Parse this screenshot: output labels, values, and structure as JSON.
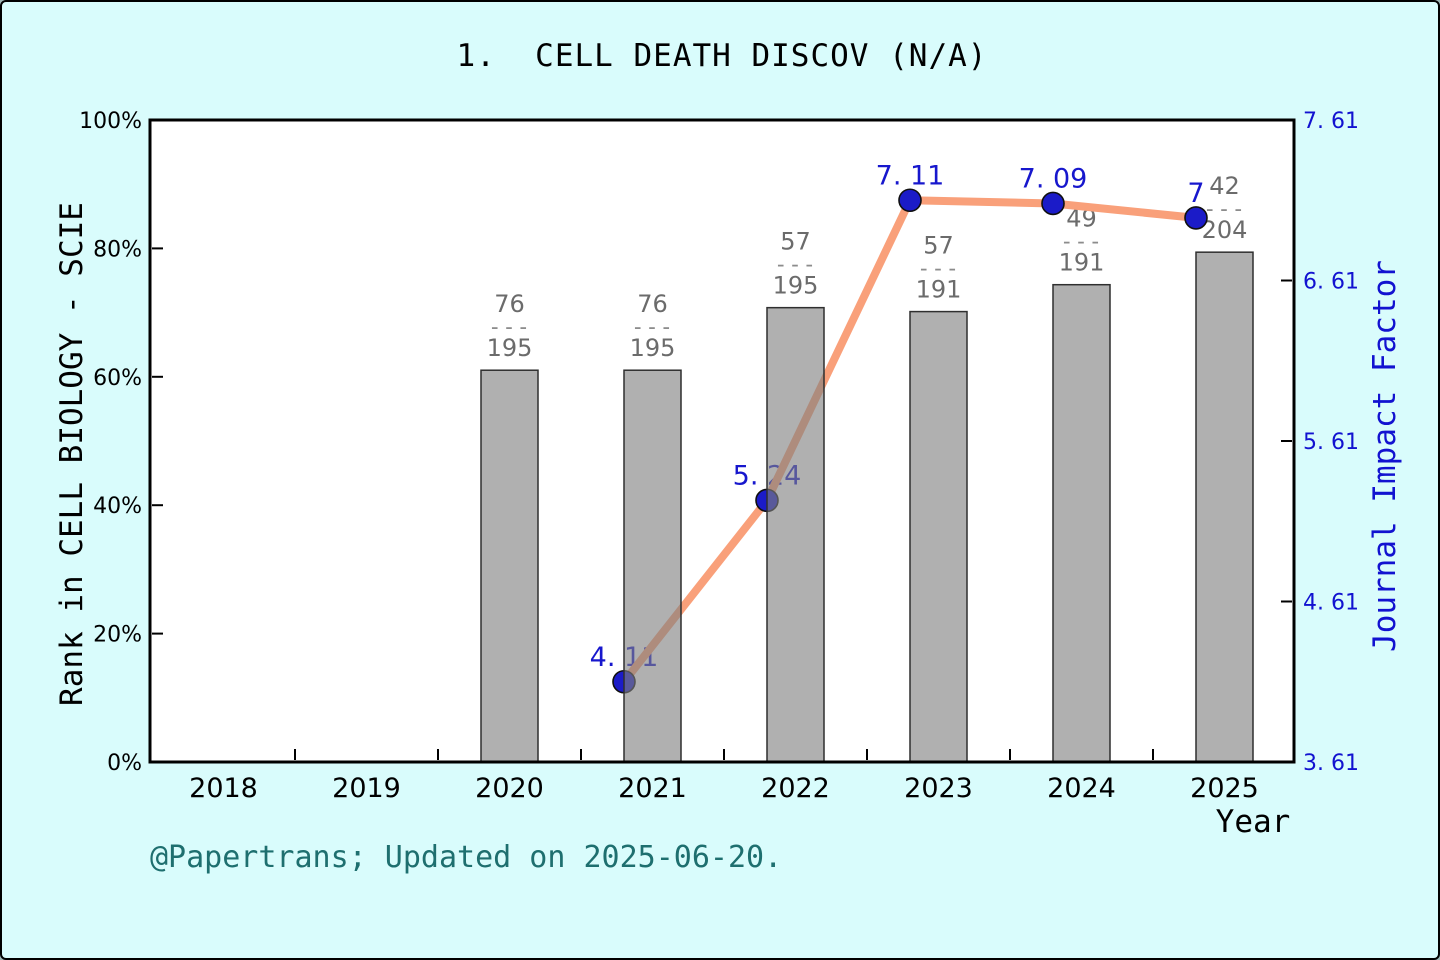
{
  "title": "1.  CELL DEATH DISCOV (N/A)",
  "footer_note": "@Papertrans; Updated on 2025-06-20.",
  "chart_data": {
    "type": "bar+line",
    "x_axis": {
      "label": "Year",
      "categories": [
        2018,
        2019,
        2020,
        2021,
        2022,
        2023,
        2024,
        2025
      ]
    },
    "left_axis": {
      "label": "Rank in CELL BIOLOGY - SCIE",
      "min": 0,
      "max": 1,
      "ticks": [
        {
          "label": "0%",
          "value": 0
        },
        {
          "label": "20%",
          "value": 0.2
        },
        {
          "label": "40%",
          "value": 0.4
        },
        {
          "label": "60%",
          "value": 0.6
        },
        {
          "label": "80%",
          "value": 0.8
        },
        {
          "label": "100%",
          "value": 1
        }
      ]
    },
    "right_axis": {
      "label": "Journal Impact Factor",
      "min": 3.61,
      "max": 7.61,
      "ticks": [
        {
          "label": "3. 61",
          "value": 3.61
        },
        {
          "label": "4. 61",
          "value": 4.61
        },
        {
          "label": "5. 61",
          "value": 5.61
        },
        {
          "label": "6. 61",
          "value": 6.61
        },
        {
          "label": "7. 61",
          "value": 7.61
        }
      ]
    },
    "bars": {
      "name": "Rank in CELL BIOLOGY - SCIE",
      "height_rule": "bar height fraction = 1 - rank/total",
      "points": [
        {
          "year": 2020,
          "rank": 76,
          "total": 195
        },
        {
          "year": 2021,
          "rank": 76,
          "total": 195
        },
        {
          "year": 2022,
          "rank": 57,
          "total": 195
        },
        {
          "year": 2023,
          "rank": 57,
          "total": 191
        },
        {
          "year": 2024,
          "rank": 49,
          "total": 191
        },
        {
          "year": 2025,
          "rank": 42,
          "total": 204
        }
      ]
    },
    "line": {
      "name": "Journal Impact Factor",
      "points": [
        {
          "year": 2021,
          "value": 4.11,
          "label": "4. 11"
        },
        {
          "year": 2022,
          "value": 5.24,
          "label": "5. 24"
        },
        {
          "year": 2023,
          "value": 7.11,
          "label": "7. 11"
        },
        {
          "year": 2024,
          "value": 7.09,
          "label": "7. 09"
        },
        {
          "year": 2025,
          "value": 7.0,
          "label": "7"
        }
      ]
    },
    "colors": {
      "background": "#d9fcfc",
      "plot_background": "#ffffff",
      "bar_fill": "rgba(128,128,128,0.62)",
      "bar_border": "#2f2f2f",
      "line": "#f9a07a",
      "marker_fill": "#1b1bc8",
      "marker_border": "#101010",
      "impact_label_text": "#1717cd",
      "fraction_text": "#6b6b6b",
      "axis_frame": "#000000",
      "right_axis_text": "#1212d0",
      "footer_text": "#1e6f6f"
    },
    "layout_hints": {
      "grid": "off",
      "legend": "none",
      "marker_x_offset": "markers sit at the left edge of each year's bar"
    }
  }
}
